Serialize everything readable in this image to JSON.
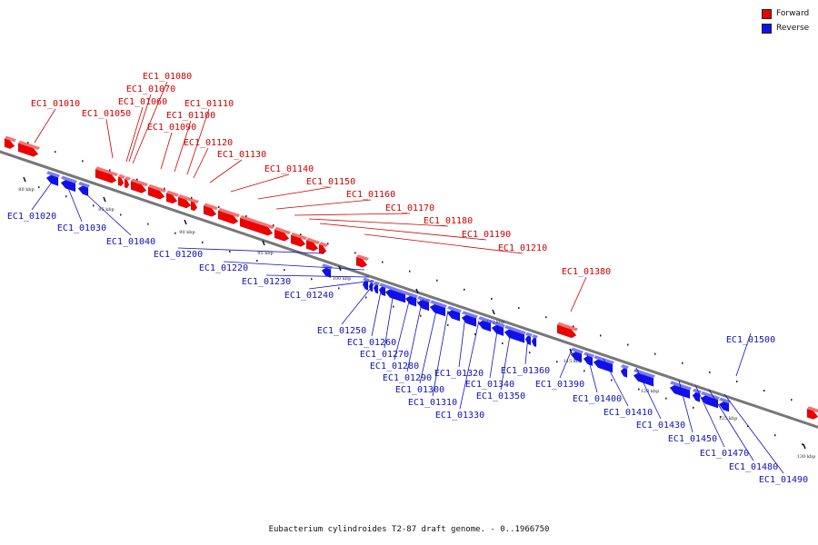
{
  "legend": {
    "forward": {
      "label": "Forward",
      "color": "#ee0000"
    },
    "reverse": {
      "label": "Reverse",
      "color": "#1010ee"
    }
  },
  "caption": "Eubacterium cylindroides T2-87 draft genome. - 0..1966750",
  "colors": {
    "forward_label": "#cc0000",
    "reverse_label": "#1010bb",
    "backbone": "#777777"
  },
  "tick_labels": [
    "80 kbp",
    "85 kbp",
    "90 kbp",
    "95 kbp",
    "100 kbp",
    "105 kbp",
    "110 kbp",
    "115 kbp",
    "120 kbp",
    "125 kbp",
    "130 kbp"
  ],
  "genes": [
    {
      "id": "EC1_01010",
      "strand": "forward"
    },
    {
      "id": "EC1_01020",
      "strand": "reverse"
    },
    {
      "id": "EC1_01030",
      "strand": "reverse"
    },
    {
      "id": "EC1_01040",
      "strand": "reverse"
    },
    {
      "id": "EC1_01050",
      "strand": "forward"
    },
    {
      "id": "EC1_01060",
      "strand": "forward"
    },
    {
      "id": "EC1_01070",
      "strand": "forward"
    },
    {
      "id": "EC1_01080",
      "strand": "forward"
    },
    {
      "id": "EC1_01090",
      "strand": "forward"
    },
    {
      "id": "EC1_01100",
      "strand": "forward"
    },
    {
      "id": "EC1_01110",
      "strand": "forward"
    },
    {
      "id": "EC1_01120",
      "strand": "forward"
    },
    {
      "id": "EC1_01130",
      "strand": "forward"
    },
    {
      "id": "EC1_01140",
      "strand": "forward"
    },
    {
      "id": "EC1_01150",
      "strand": "forward"
    },
    {
      "id": "EC1_01160",
      "strand": "forward"
    },
    {
      "id": "EC1_01170",
      "strand": "forward"
    },
    {
      "id": "EC1_01180",
      "strand": "forward"
    },
    {
      "id": "EC1_01190",
      "strand": "forward"
    },
    {
      "id": "EC1_01200",
      "strand": "reverse"
    },
    {
      "id": "EC1_01210",
      "strand": "forward"
    },
    {
      "id": "EC1_01220",
      "strand": "reverse"
    },
    {
      "id": "EC1_01230",
      "strand": "reverse"
    },
    {
      "id": "EC1_01240",
      "strand": "reverse"
    },
    {
      "id": "EC1_01250",
      "strand": "reverse"
    },
    {
      "id": "EC1_01260",
      "strand": "reverse"
    },
    {
      "id": "EC1_01270",
      "strand": "reverse"
    },
    {
      "id": "EC1_01280",
      "strand": "reverse"
    },
    {
      "id": "EC1_01290",
      "strand": "reverse"
    },
    {
      "id": "EC1_01300",
      "strand": "reverse"
    },
    {
      "id": "EC1_01310",
      "strand": "reverse"
    },
    {
      "id": "EC1_01320",
      "strand": "reverse"
    },
    {
      "id": "EC1_01330",
      "strand": "reverse"
    },
    {
      "id": "EC1_01340",
      "strand": "reverse"
    },
    {
      "id": "EC1_01350",
      "strand": "reverse"
    },
    {
      "id": "EC1_01360",
      "strand": "reverse"
    },
    {
      "id": "EC1_01380",
      "strand": "forward"
    },
    {
      "id": "EC1_01390",
      "strand": "reverse"
    },
    {
      "id": "EC1_01400",
      "strand": "reverse"
    },
    {
      "id": "EC1_01410",
      "strand": "reverse"
    },
    {
      "id": "EC1_01430",
      "strand": "reverse"
    },
    {
      "id": "EC1_01450",
      "strand": "reverse"
    },
    {
      "id": "EC1_01470",
      "strand": "reverse"
    },
    {
      "id": "EC1_01480",
      "strand": "reverse"
    },
    {
      "id": "EC1_01490",
      "strand": "reverse"
    },
    {
      "id": "EC1_01500",
      "strand": "reverse"
    }
  ]
}
